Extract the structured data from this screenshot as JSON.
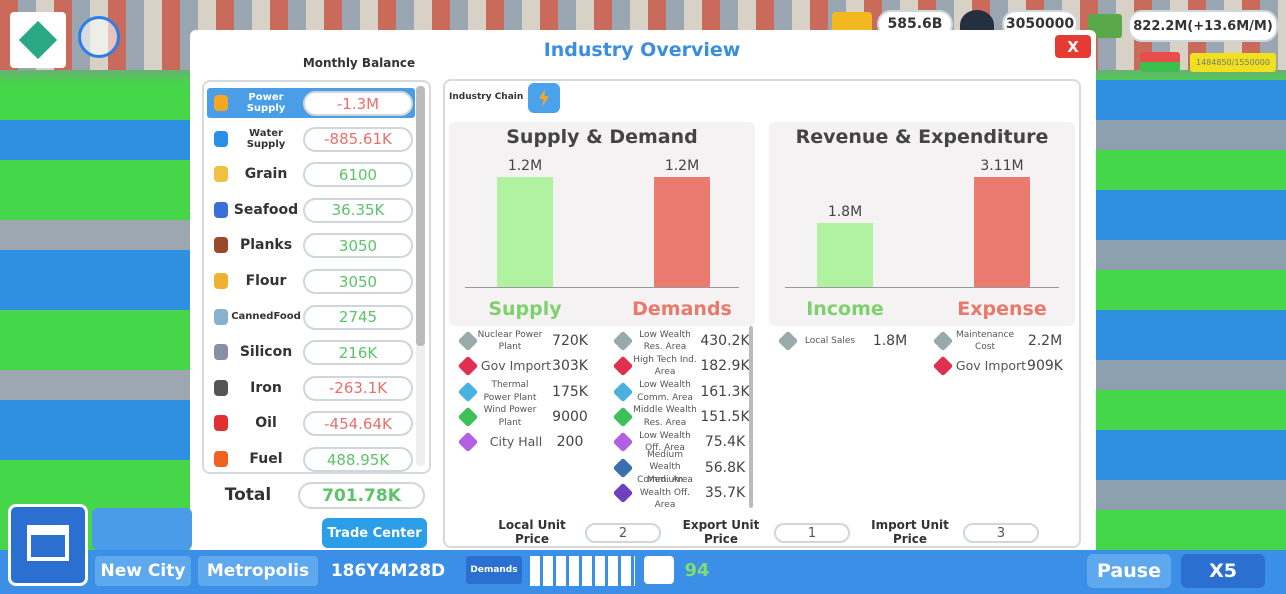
{
  "hud": {
    "gdp": "585.6B",
    "population": "3050000",
    "money": "822.2M(+13.6M/M)",
    "capacity": "1484850/1550000"
  },
  "panel": {
    "title": "Industry Overview",
    "close": "X"
  },
  "monthly_balance": {
    "title": "Monthly Balance",
    "items": [
      {
        "name": "Power Supply",
        "value": "-1.3M"
      },
      {
        "name": "Water Supply",
        "value": "-885.61K"
      },
      {
        "name": "Grain",
        "value": "6100"
      },
      {
        "name": "Seafood",
        "value": "36.35K"
      },
      {
        "name": "Planks",
        "value": "3050"
      },
      {
        "name": "Flour",
        "value": "3050"
      },
      {
        "name": "CannedFood",
        "value": "2745"
      },
      {
        "name": "Silicon",
        "value": "216K"
      },
      {
        "name": "Iron",
        "value": "-263.1K"
      },
      {
        "name": "Oil",
        "value": "-454.64K"
      },
      {
        "name": "Fuel",
        "value": "488.95K"
      }
    ],
    "total_label": "Total",
    "total": "701.78K",
    "button": "Trade Center"
  },
  "industry_chain": {
    "label": "Industry Chain"
  },
  "supply_demand": {
    "title": "Supply & Demand",
    "categories": [
      "Supply",
      "Demands"
    ],
    "values": [
      1200000,
      1200000
    ],
    "value_labels": [
      "1.2M",
      "1.2M"
    ],
    "colors": [
      "#b1f2a0",
      "#ea7b6e"
    ],
    "supply": [
      {
        "name": "Nuclear Power Plant",
        "value": "720K"
      },
      {
        "name": "Gov Import",
        "value": "303K"
      },
      {
        "name": "Thermal Power Plant",
        "value": "175K"
      },
      {
        "name": "Wind Power Plant",
        "value": "9000"
      },
      {
        "name": "City Hall",
        "value": "200"
      }
    ],
    "demands": [
      {
        "name": "Low Wealth Res. Area",
        "value": "430.2K"
      },
      {
        "name": "High Tech Ind. Area",
        "value": "182.9K"
      },
      {
        "name": "Low Wealth Comm. Area",
        "value": "161.3K"
      },
      {
        "name": "Middle Wealth Res. Area",
        "value": "151.5K"
      },
      {
        "name": "Low Wealth Off. Area",
        "value": "75.4K"
      },
      {
        "name": "Medium Wealth Comm. Area",
        "value": "56.8K"
      },
      {
        "name": "Medium Wealth Off. Area",
        "value": "35.7K"
      }
    ]
  },
  "revenue_expenditure": {
    "title": "Revenue & Expenditure",
    "categories": [
      "Income",
      "Expense"
    ],
    "values": [
      1800000,
      3110000
    ],
    "value_labels": [
      "1.8M",
      "3.11M"
    ],
    "colors": [
      "#b1f2a0",
      "#ea7b6e"
    ],
    "income": [
      {
        "name": "Local Sales",
        "value": "1.8M"
      }
    ],
    "expense": [
      {
        "name": "Maintenance Cost",
        "value": "2.2M"
      },
      {
        "name": "Gov Import",
        "value": "909K"
      }
    ]
  },
  "prices": [
    {
      "label": "Local Unit Price",
      "value": "2"
    },
    {
      "label": "Export Unit Price",
      "value": "1"
    },
    {
      "label": "Import Unit Price",
      "value": "3"
    }
  ],
  "bottom_bar": {
    "city": "New City",
    "tier": "Metropolis",
    "date": "186Y4M28D",
    "demands": "Demands",
    "happiness": "94",
    "pause": "Pause",
    "speed": "X5"
  }
}
